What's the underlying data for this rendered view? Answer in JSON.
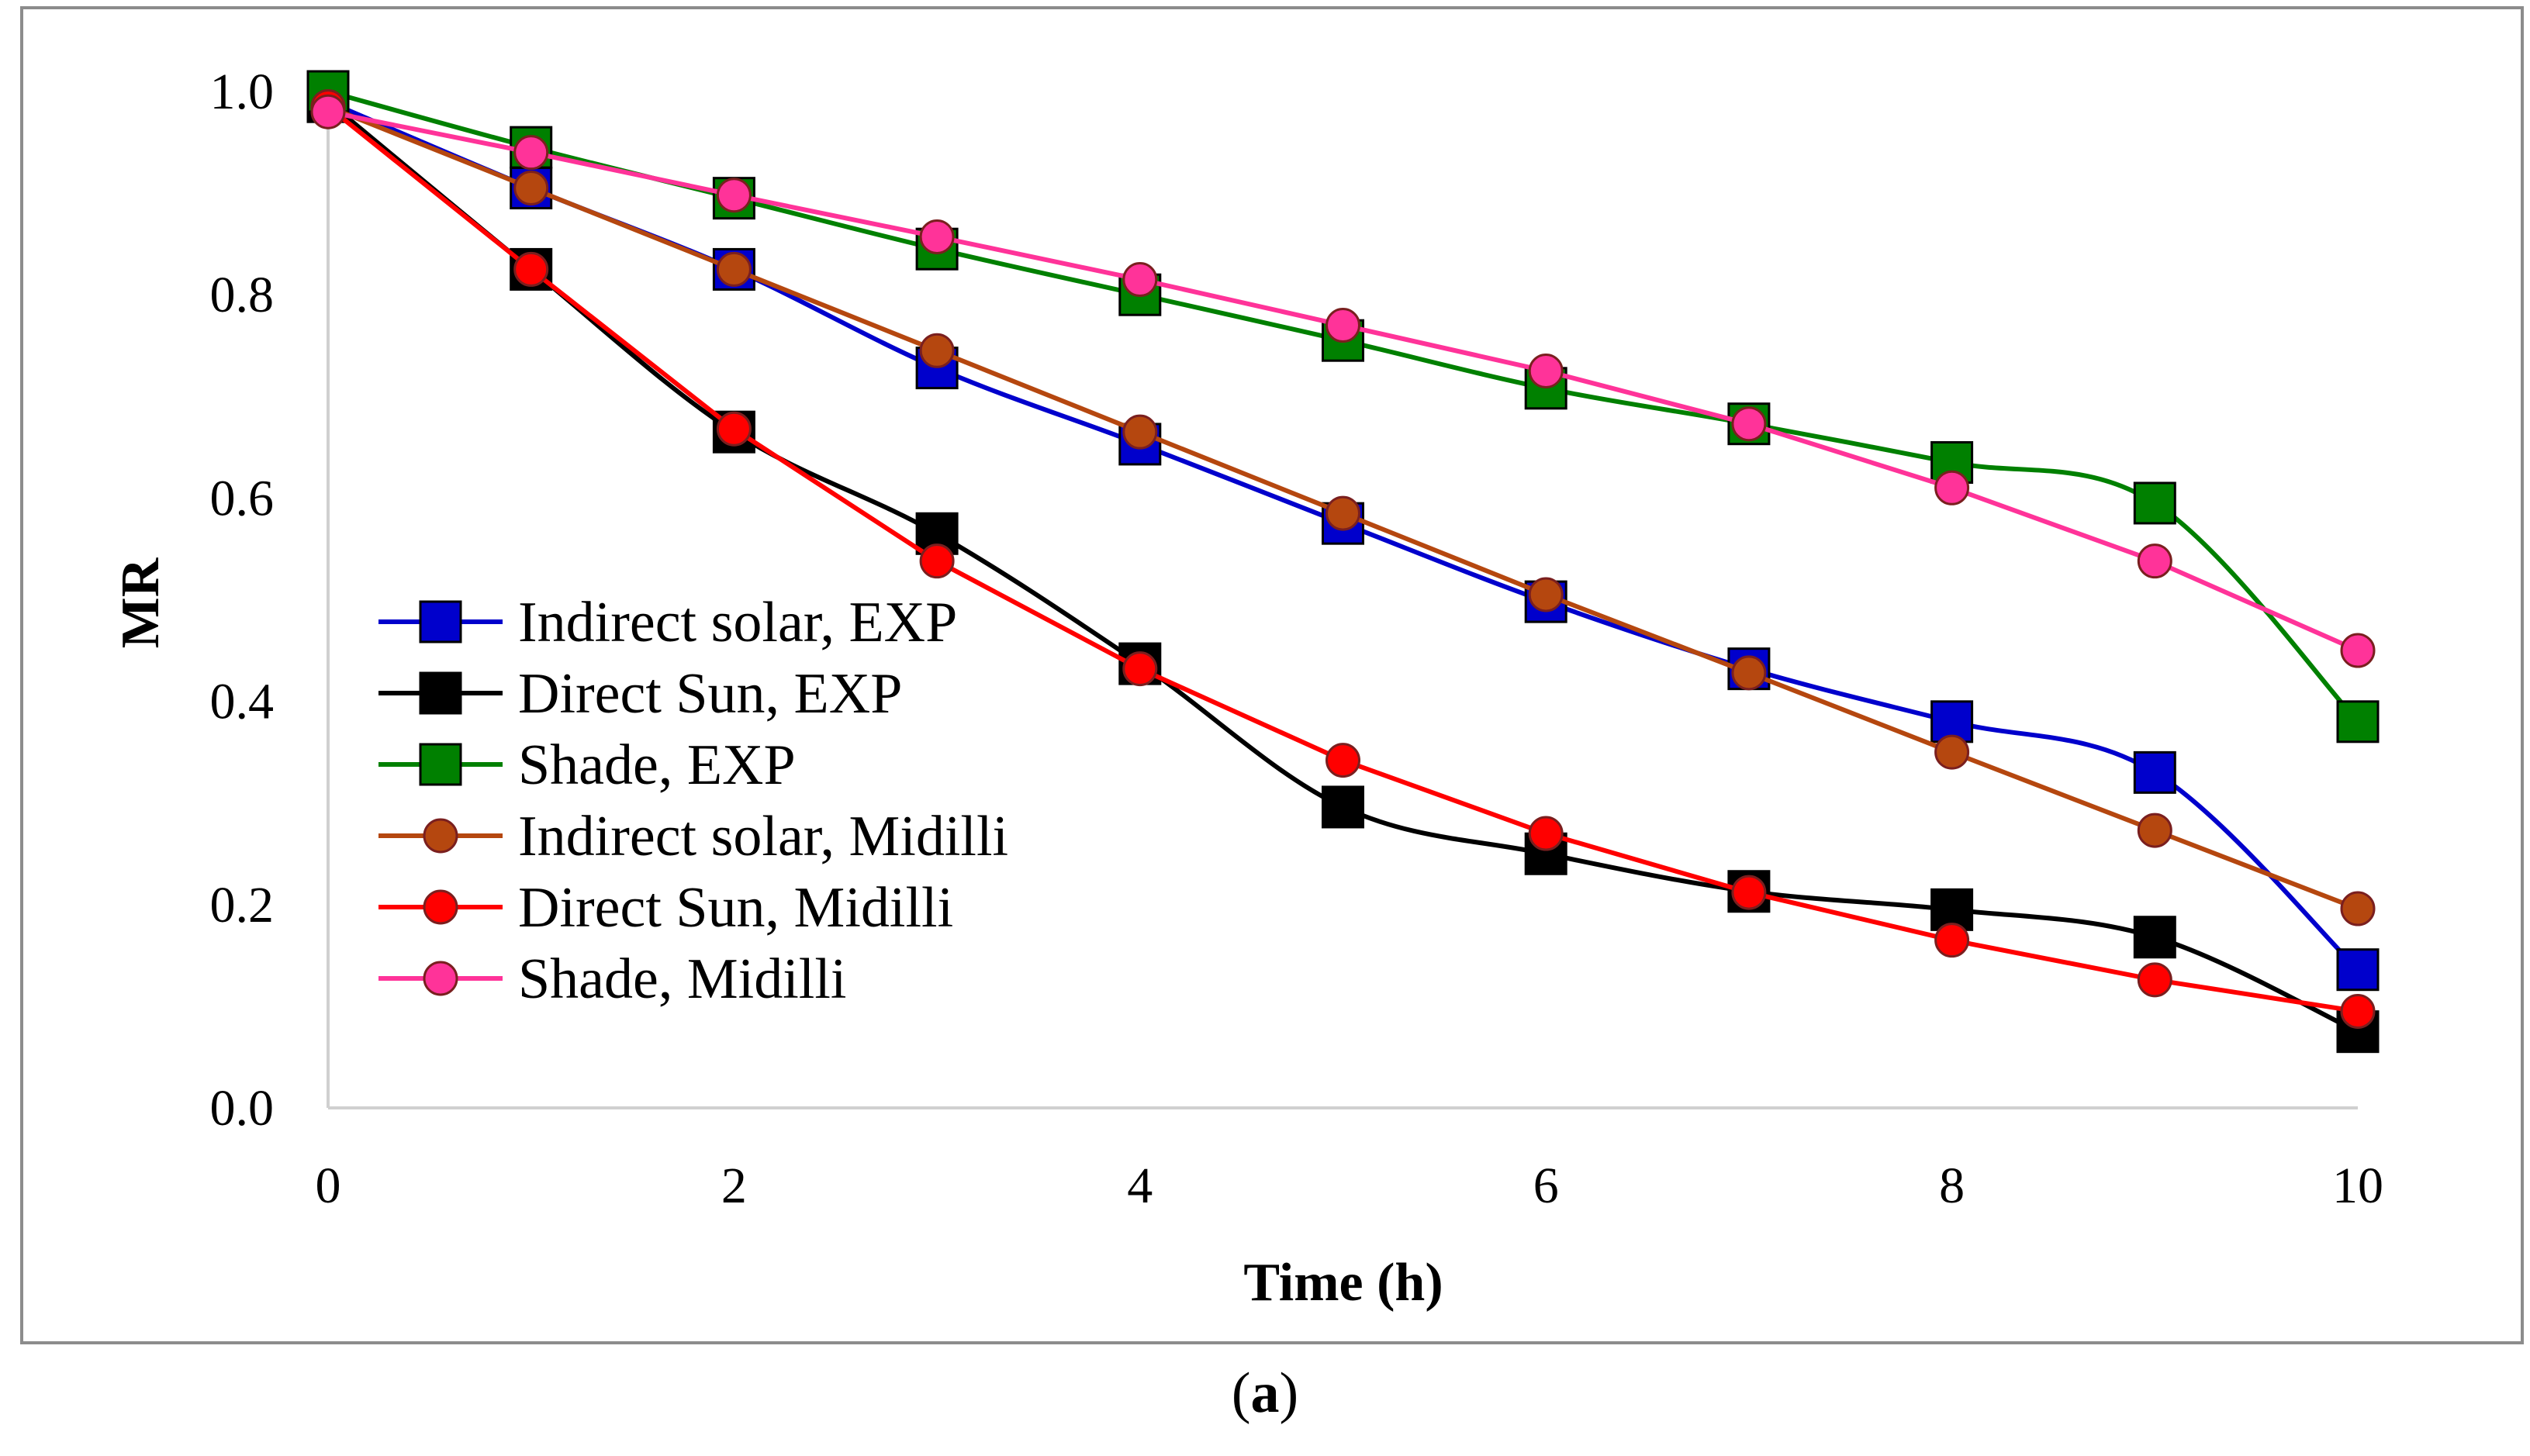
{
  "chart_data": {
    "type": "line",
    "xlabel": "Time (h)",
    "ylabel": "MR",
    "xlim": [
      0,
      10
    ],
    "ylim": [
      0.0,
      1.0
    ],
    "x_ticks": [
      "0",
      "2",
      "4",
      "6",
      "8",
      "10"
    ],
    "y_ticks": [
      "0.0",
      "0.2",
      "0.4",
      "0.6",
      "0.8",
      "1.0"
    ],
    "grid": false,
    "legend_position": "left-center",
    "x": [
      0,
      1,
      2,
      3,
      4,
      5,
      6,
      7,
      8,
      9,
      10
    ],
    "series": [
      {
        "name": "Indirect solar, EXP",
        "color": "#0000CC",
        "marker": "square",
        "smooth": true,
        "values": [
          0.99,
          0.905,
          0.825,
          0.728,
          0.653,
          0.575,
          0.498,
          0.432,
          0.38,
          0.33,
          0.136
        ]
      },
      {
        "name": "Direct Sun, EXP",
        "color": "#000000",
        "marker": "square",
        "smooth": true,
        "values": [
          0.99,
          0.825,
          0.665,
          0.565,
          0.437,
          0.296,
          0.25,
          0.213,
          0.195,
          0.168,
          0.075
        ]
      },
      {
        "name": "Shade, EXP",
        "color": "#008000",
        "marker": "square",
        "smooth": true,
        "values": [
          1.0,
          0.945,
          0.895,
          0.845,
          0.8,
          0.755,
          0.708,
          0.673,
          0.635,
          0.595,
          0.38
        ]
      },
      {
        "name": "Indirect solar, Midilli",
        "color": "#B5470F",
        "marker": "circle",
        "smooth": false,
        "values": [
          0.985,
          0.905,
          0.825,
          0.745,
          0.665,
          0.585,
          0.505,
          0.428,
          0.35,
          0.273,
          0.196
        ]
      },
      {
        "name": "Direct Sun, Midilli",
        "color": "#FF0000",
        "marker": "circle",
        "smooth": false,
        "values": [
          0.985,
          0.825,
          0.668,
          0.538,
          0.432,
          0.342,
          0.27,
          0.212,
          0.165,
          0.126,
          0.095
        ]
      },
      {
        "name": "Shade, Midilli",
        "color": "#FF3399",
        "marker": "circle",
        "smooth": false,
        "values": [
          0.98,
          0.94,
          0.898,
          0.857,
          0.815,
          0.77,
          0.725,
          0.673,
          0.61,
          0.538,
          0.45
        ]
      }
    ]
  },
  "caption": {
    "open": "(",
    "letter": "a",
    "close": ")"
  }
}
